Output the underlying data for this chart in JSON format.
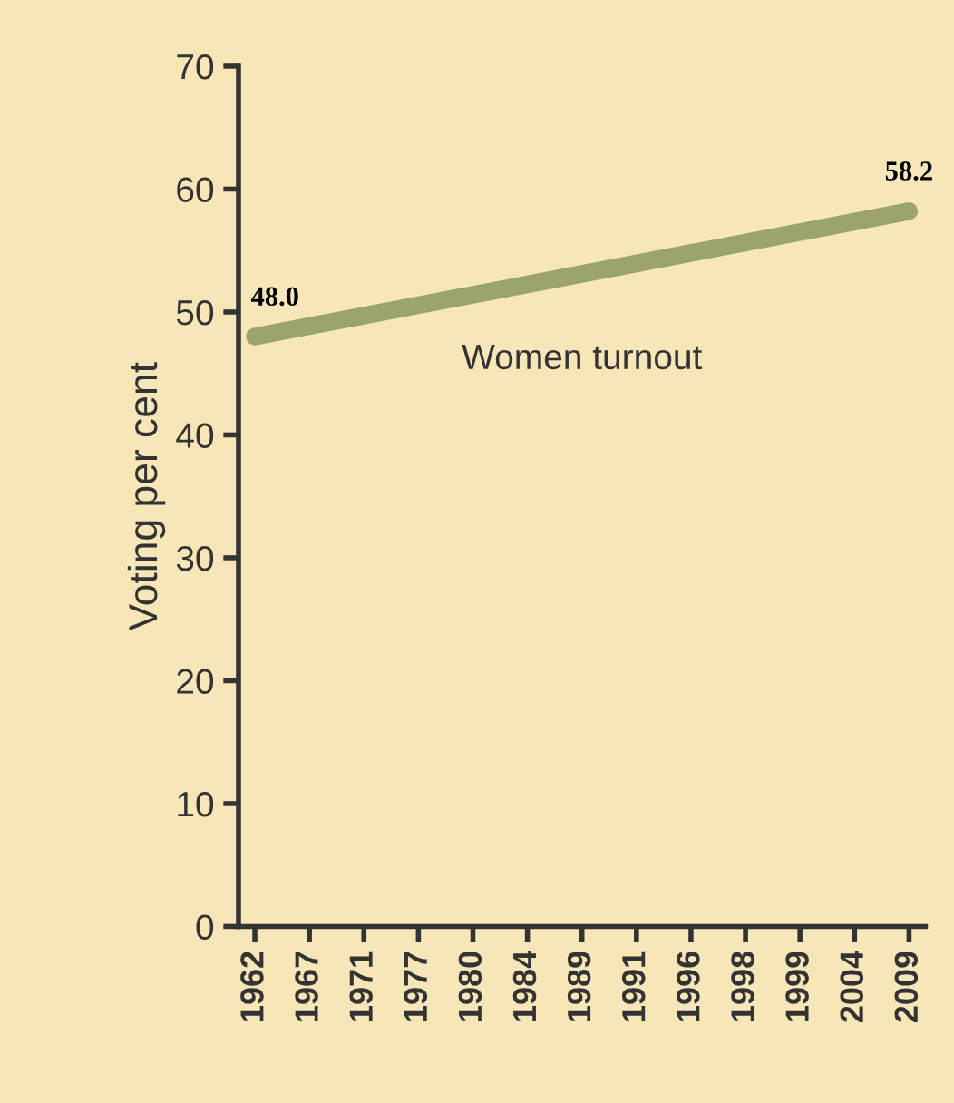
{
  "chart_data": {
    "type": "line",
    "ylabel": "Voting per cent",
    "categories": [
      "1962",
      "1967",
      "1971",
      "1977",
      "1980",
      "1984",
      "1989",
      "1991",
      "1996",
      "1998",
      "1999",
      "2004",
      "2009"
    ],
    "series": [
      {
        "name": "Women turnout",
        "color": "#9aa46c",
        "values": [
          48.0,
          null,
          null,
          null,
          null,
          null,
          null,
          null,
          null,
          null,
          null,
          null,
          58.2
        ],
        "value_labels": [
          "48.0",
          null,
          null,
          null,
          null,
          null,
          null,
          null,
          null,
          null,
          null,
          null,
          "58.2"
        ]
      }
    ],
    "ylim": [
      0,
      70
    ],
    "yticks": [
      0,
      10,
      20,
      30,
      40,
      50,
      60,
      70
    ],
    "grid": false,
    "legend": false,
    "marker": "none",
    "line_style": "solid"
  }
}
